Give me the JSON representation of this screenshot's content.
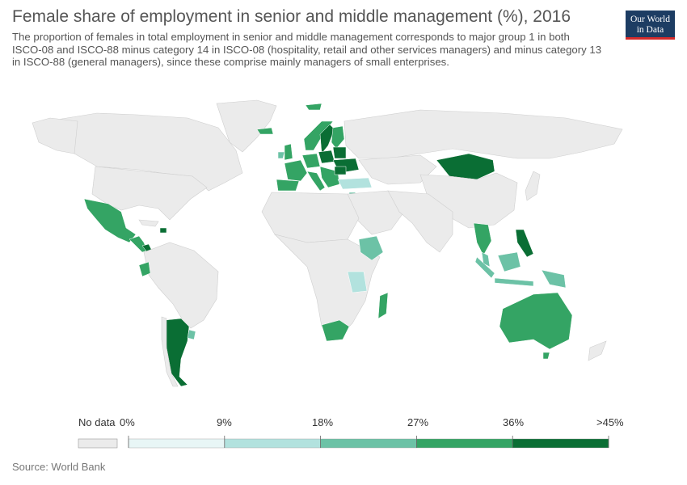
{
  "header": {
    "title": "Female share of employment in senior and middle management (%), 2016",
    "subtitle": "The proportion of females in total employment in senior and middle management corresponds to major group 1 in both ISCO-08 and ISCO-88 minus category 14 in ISCO-08 (hospitality, retail and other services managers) and minus category 13 in ISCO-88 (general managers), since these comprise mainly managers of small enterprises."
  },
  "logo": {
    "line1": "Our World",
    "line2": "in Data"
  },
  "legend": {
    "no_data_label": "No data",
    "ticks": [
      "0%",
      "9%",
      "18%",
      "27%",
      "36%",
      ">45%"
    ],
    "bin_values": [
      0,
      9,
      18,
      27,
      36,
      45
    ],
    "colors": [
      "#e8f6f6",
      "#b2e2de",
      "#6cc2a6",
      "#34a464",
      "#0a6e34"
    ],
    "no_data_color": "#ebebeb"
  },
  "footer": {
    "source": "Source: World Bank"
  }
}
